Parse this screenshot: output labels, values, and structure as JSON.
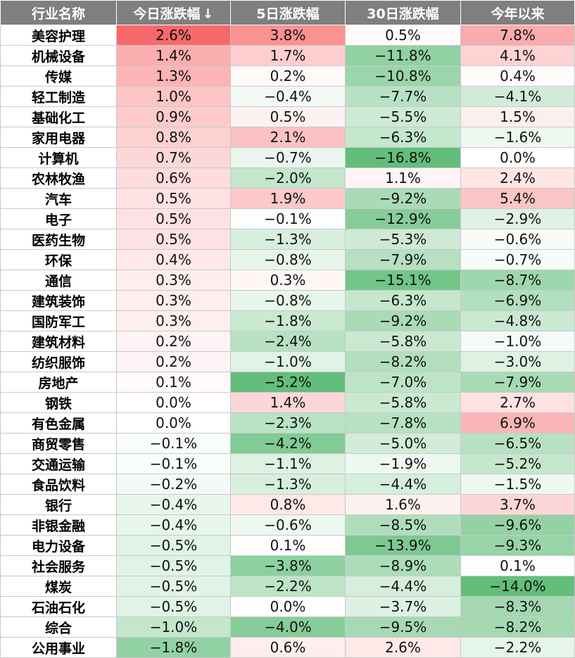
{
  "headers": [
    "行业名称",
    "今日涨跌幅",
    "5日涨跌幅",
    "30日涨跌幅",
    "今年以来"
  ],
  "sort_indicator": "↓",
  "colors": {
    "header_bg": "#7f7f7f",
    "positive": "#f8696b",
    "negative": "#63be7b",
    "neutral": "#ffffff"
  },
  "rows": [
    {
      "name": "美容护理",
      "values": [
        2.6,
        3.8,
        0.5,
        7.8
      ],
      "labels": [
        "2.6%",
        "3.8%",
        "0.5%",
        "7.8%"
      ]
    },
    {
      "name": "机械设备",
      "values": [
        1.4,
        1.7,
        -11.8,
        4.1
      ],
      "labels": [
        "1.4%",
        "1.7%",
        "−11.8%",
        "4.1%"
      ]
    },
    {
      "name": "传媒",
      "values": [
        1.3,
        0.2,
        -10.8,
        0.4
      ],
      "labels": [
        "1.3%",
        "0.2%",
        "−10.8%",
        "0.4%"
      ]
    },
    {
      "name": "轻工制造",
      "values": [
        1.0,
        -0.4,
        -7.7,
        -4.1
      ],
      "labels": [
        "1.0%",
        "−0.4%",
        "−7.7%",
        "−4.1%"
      ]
    },
    {
      "name": "基础化工",
      "values": [
        0.9,
        0.5,
        -5.5,
        1.5
      ],
      "labels": [
        "0.9%",
        "0.5%",
        "−5.5%",
        "1.5%"
      ]
    },
    {
      "name": "家用电器",
      "values": [
        0.8,
        2.1,
        -6.3,
        -1.6
      ],
      "labels": [
        "0.8%",
        "2.1%",
        "−6.3%",
        "−1.6%"
      ]
    },
    {
      "name": "计算机",
      "values": [
        0.7,
        -0.7,
        -16.8,
        0.0
      ],
      "labels": [
        "0.7%",
        "−0.7%",
        "−16.8%",
        "0.0%"
      ]
    },
    {
      "name": "农林牧渔",
      "values": [
        0.6,
        -2.0,
        1.1,
        2.4
      ],
      "labels": [
        "0.6%",
        "−2.0%",
        "1.1%",
        "2.4%"
      ]
    },
    {
      "name": "汽车",
      "values": [
        0.5,
        1.9,
        -9.2,
        5.4
      ],
      "labels": [
        "0.5%",
        "1.9%",
        "−9.2%",
        "5.4%"
      ]
    },
    {
      "name": "电子",
      "values": [
        0.5,
        -0.1,
        -12.9,
        -2.9
      ],
      "labels": [
        "0.5%",
        "−0.1%",
        "−12.9%",
        "−2.9%"
      ]
    },
    {
      "name": "医药生物",
      "values": [
        0.5,
        -1.3,
        -5.3,
        -0.6
      ],
      "labels": [
        "0.5%",
        "−1.3%",
        "−5.3%",
        "−0.6%"
      ]
    },
    {
      "name": "环保",
      "values": [
        0.4,
        -0.8,
        -7.9,
        -0.7
      ],
      "labels": [
        "0.4%",
        "−0.8%",
        "−7.9%",
        "−0.7%"
      ]
    },
    {
      "name": "通信",
      "values": [
        0.3,
        0.3,
        -15.1,
        -8.7
      ],
      "labels": [
        "0.3%",
        "0.3%",
        "−15.1%",
        "−8.7%"
      ]
    },
    {
      "name": "建筑装饰",
      "values": [
        0.3,
        -0.8,
        -6.3,
        -6.9
      ],
      "labels": [
        "0.3%",
        "−0.8%",
        "−6.3%",
        "−6.9%"
      ]
    },
    {
      "name": "国防军工",
      "values": [
        0.3,
        -1.8,
        -9.2,
        -4.8
      ],
      "labels": [
        "0.3%",
        "−1.8%",
        "−9.2%",
        "−4.8%"
      ]
    },
    {
      "name": "建筑材料",
      "values": [
        0.2,
        -2.4,
        -5.8,
        -1.0
      ],
      "labels": [
        "0.2%",
        "−2.4%",
        "−5.8%",
        "−1.0%"
      ]
    },
    {
      "name": "纺织服饰",
      "values": [
        0.2,
        -1.0,
        -8.2,
        -3.0
      ],
      "labels": [
        "0.2%",
        "−1.0%",
        "−8.2%",
        "−3.0%"
      ]
    },
    {
      "name": "房地产",
      "values": [
        0.1,
        -5.2,
        -7.0,
        -7.9
      ],
      "labels": [
        "0.1%",
        "−5.2%",
        "−7.0%",
        "−7.9%"
      ]
    },
    {
      "name": "钢铁",
      "values": [
        0.0,
        1.4,
        -5.8,
        2.7
      ],
      "labels": [
        "0.0%",
        "1.4%",
        "−5.8%",
        "2.7%"
      ]
    },
    {
      "name": "有色金属",
      "values": [
        0.0,
        -2.3,
        -7.8,
        6.9
      ],
      "labels": [
        "0.0%",
        "−2.3%",
        "−7.8%",
        "6.9%"
      ]
    },
    {
      "name": "商贸零售",
      "values": [
        -0.1,
        -4.2,
        -5.0,
        -6.5
      ],
      "labels": [
        "−0.1%",
        "−4.2%",
        "−5.0%",
        "−6.5%"
      ]
    },
    {
      "name": "交通运输",
      "values": [
        -0.1,
        -1.1,
        -1.9,
        -5.2
      ],
      "labels": [
        "−0.1%",
        "−1.1%",
        "−1.9%",
        "−5.2%"
      ]
    },
    {
      "name": "食品饮料",
      "values": [
        -0.2,
        -1.3,
        -4.4,
        -1.5
      ],
      "labels": [
        "−0.2%",
        "−1.3%",
        "−4.4%",
        "−1.5%"
      ]
    },
    {
      "name": "银行",
      "values": [
        -0.4,
        0.8,
        1.6,
        3.7
      ],
      "labels": [
        "−0.4%",
        "0.8%",
        "1.6%",
        "3.7%"
      ]
    },
    {
      "name": "非银金融",
      "values": [
        -0.4,
        -0.6,
        -8.5,
        -9.6
      ],
      "labels": [
        "−0.4%",
        "−0.6%",
        "−8.5%",
        "−9.6%"
      ]
    },
    {
      "name": "电力设备",
      "values": [
        -0.5,
        0.1,
        -13.9,
        -9.3
      ],
      "labels": [
        "−0.5%",
        "0.1%",
        "−13.9%",
        "−9.3%"
      ]
    },
    {
      "name": "社会服务",
      "values": [
        -0.5,
        -3.8,
        -8.9,
        0.1
      ],
      "labels": [
        "−0.5%",
        "−3.8%",
        "−8.9%",
        "0.1%"
      ]
    },
    {
      "name": "煤炭",
      "values": [
        -0.5,
        -2.2,
        -4.4,
        -14.0
      ],
      "labels": [
        "−0.5%",
        "−2.2%",
        "−4.4%",
        "−14.0%"
      ]
    },
    {
      "name": "石油石化",
      "values": [
        -0.5,
        0.0,
        -3.7,
        -8.3
      ],
      "labels": [
        "−0.5%",
        "0.0%",
        "−3.7%",
        "−8.3%"
      ]
    },
    {
      "name": "综合",
      "values": [
        -1.0,
        -4.0,
        -9.5,
        -8.2
      ],
      "labels": [
        "−1.0%",
        "−4.0%",
        "−9.5%",
        "−8.2%"
      ]
    },
    {
      "name": "公用事业",
      "values": [
        -1.8,
        0.6,
        2.6,
        -2.2
      ],
      "labels": [
        "−1.8%",
        "0.6%",
        "2.6%",
        "−2.2%"
      ]
    }
  ]
}
